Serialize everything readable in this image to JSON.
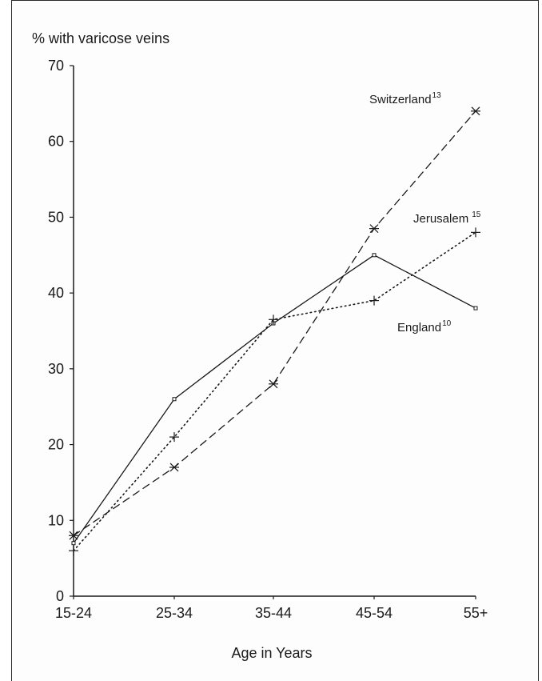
{
  "chart_data": {
    "type": "line",
    "ylabel": "% with varicose veins",
    "xlabel": "Age in Years",
    "categories": [
      "15-24",
      "25-34",
      "35-44",
      "45-54",
      "55+"
    ],
    "ylim": [
      0,
      70
    ],
    "yticks": [
      0,
      10,
      20,
      30,
      40,
      50,
      60,
      70
    ],
    "grid": false,
    "series": [
      {
        "name": "England",
        "sup": "10",
        "style": "solid",
        "marker": "dot",
        "color": "#1a1a1a",
        "values": [
          7,
          26,
          36,
          45,
          38
        ]
      },
      {
        "name": "Jerusalem",
        "sup": "15",
        "style": "dotted",
        "marker": "plus",
        "color": "#1a1a1a",
        "values": [
          6,
          21,
          36.5,
          39,
          48
        ]
      },
      {
        "name": "Switzerland",
        "sup": "13",
        "style": "dashed",
        "marker": "star",
        "color": "#1a1a1a",
        "values": [
          8,
          17,
          28,
          48.5,
          64
        ]
      }
    ]
  }
}
